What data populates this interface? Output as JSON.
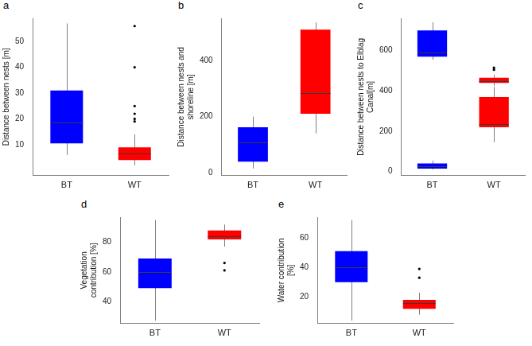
{
  "chart_data": [
    {
      "panel": "a",
      "type": "boxplot",
      "y_label": "Distance between nests [m]",
      "categories": [
        "BT",
        "WT"
      ],
      "ylim": [
        -2,
        59
      ],
      "yticks": [
        10,
        20,
        30,
        40,
        50
      ],
      "grid": false,
      "boxes": [
        {
          "category": "BT",
          "color": "#0000ff",
          "min": 6,
          "q1": 10.5,
          "median": 18.5,
          "q3": 31,
          "max": 57,
          "outliers": []
        },
        {
          "category": "WT",
          "color": "#ff0000",
          "min": 2,
          "q1": 4,
          "median": 6.5,
          "q3": 9,
          "max": 14,
          "outliers": [
            19,
            20,
            22,
            25,
            40,
            56
          ]
        }
      ]
    },
    {
      "panel": "b",
      "type": "boxplot",
      "y_label": "Distance between nests and shoreline [m]",
      "categories": [
        "BT",
        "WT"
      ],
      "ylim": [
        -10,
        550
      ],
      "yticks": [
        0,
        200,
        400
      ],
      "grid": false,
      "boxes": [
        {
          "category": "BT",
          "color": "#0000ff",
          "min": 15,
          "q1": 40,
          "median": 108,
          "q3": 162,
          "max": 200,
          "outliers": []
        },
        {
          "category": "WT",
          "color": "#ff0000",
          "min": 140,
          "q1": 210,
          "median": 285,
          "q3": 510,
          "max": 535,
          "outliers": []
        }
      ]
    },
    {
      "panel": "c",
      "type": "boxplot",
      "y_label": "Distance between nests to Elblag Canal[m]",
      "categories": [
        "BT",
        "WT"
      ],
      "ylim": [
        -20,
        760
      ],
      "yticks": [
        0,
        200,
        400,
        600
      ],
      "grid": false,
      "boxes": [
        {
          "category": "BT",
          "color": "#0000ff",
          "min": 555,
          "q1": 570,
          "median": 590,
          "q3": 700,
          "max": 740,
          "outliers": []
        },
        {
          "category": "BT",
          "color": "#0000ff",
          "min": 10,
          "q1": 15,
          "median": 25,
          "q3": 40,
          "max": 55,
          "outliers": []
        },
        {
          "category": "WT",
          "color": "#ff0000",
          "min": 145,
          "q1": 220,
          "median": 235,
          "q3": 370,
          "max": 420,
          "outliers": []
        },
        {
          "category": "WT",
          "color": "#ff0000",
          "min": 425,
          "q1": 440,
          "median": 450,
          "q3": 465,
          "max": 480,
          "outliers": [
            505,
            515
          ]
        }
      ]
    },
    {
      "panel": "d",
      "type": "boxplot",
      "y_label": "Vegetation contribution [%]",
      "categories": [
        "BT",
        "WT"
      ],
      "ylim": [
        25,
        97
      ],
      "yticks": [
        40,
        60,
        80
      ],
      "grid": false,
      "boxes": [
        {
          "category": "BT",
          "color": "#0000ff",
          "min": 27,
          "q1": 49,
          "median": 60,
          "q3": 69,
          "max": 95,
          "outliers": []
        },
        {
          "category": "WT",
          "color": "#ff0000",
          "min": 77,
          "q1": 82,
          "median": 84,
          "q3": 88,
          "max": 92,
          "outliers": [
            61,
            66
          ]
        }
      ]
    },
    {
      "panel": "e",
      "type": "boxplot",
      "y_label": "Water contribution [%]",
      "categories": [
        "BT",
        "WT"
      ],
      "ylim": [
        2,
        74
      ],
      "yticks": [
        20,
        40,
        60
      ],
      "grid": false,
      "boxes": [
        {
          "category": "BT",
          "color": "#0000ff",
          "min": 4,
          "q1": 30,
          "median": 40,
          "q3": 51,
          "max": 72,
          "outliers": []
        },
        {
          "category": "WT",
          "color": "#ff0000",
          "min": 8,
          "q1": 12,
          "median": 16,
          "q3": 18,
          "max": 23,
          "outliers": [
            33,
            39
          ]
        }
      ]
    }
  ]
}
